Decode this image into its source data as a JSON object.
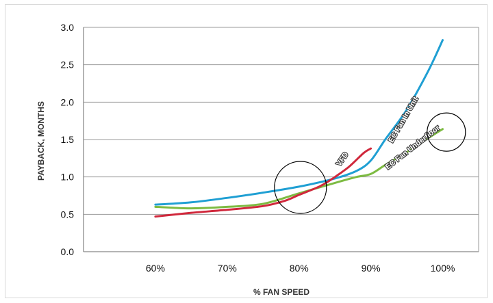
{
  "chart_data": {
    "type": "line",
    "title": "",
    "xlabel": "% FAN SPEED",
    "ylabel": "PAYBACK, MONTHS",
    "x": [
      60,
      70,
      80,
      90,
      100
    ],
    "x_tick_labels": [
      "60%",
      "70%",
      "80%",
      "90%",
      "100%"
    ],
    "y_tick_labels": [
      "0.0",
      "0.5",
      "1.0",
      "1.5",
      "2.0",
      "2.5",
      "3.0"
    ],
    "ylim": [
      0,
      3
    ],
    "grid": "horizontal",
    "colors": {
      "ec_fan_in_unit": "#1f9fd3",
      "ec_fan_underfloor": "#7dbb42",
      "vfd": "#d0283c",
      "grid": "#9a9a9a",
      "annotation_circle": "#000000"
    },
    "series": [
      {
        "name": "EC Fan In Unit",
        "color": "#1f9fd3",
        "points": [
          [
            60,
            0.63
          ],
          [
            65,
            0.66
          ],
          [
            70,
            0.72
          ],
          [
            75,
            0.79
          ],
          [
            80,
            0.87
          ],
          [
            85,
            0.98
          ],
          [
            88,
            1.08
          ],
          [
            90,
            1.22
          ],
          [
            92,
            1.5
          ],
          [
            95,
            1.9
          ],
          [
            98,
            2.42
          ],
          [
            100,
            2.83
          ]
        ]
      },
      {
        "name": "EC Fan Underfloor",
        "color": "#7dbb42",
        "points": [
          [
            60,
            0.6
          ],
          [
            65,
            0.58
          ],
          [
            70,
            0.6
          ],
          [
            75,
            0.64
          ],
          [
            80,
            0.78
          ],
          [
            85,
            0.92
          ],
          [
            88,
            1.0
          ],
          [
            90,
            1.04
          ],
          [
            92,
            1.16
          ],
          [
            95,
            1.33
          ],
          [
            98,
            1.52
          ],
          [
            100,
            1.64
          ]
        ]
      },
      {
        "name": "VFD",
        "color": "#d0283c",
        "points": [
          [
            60,
            0.47
          ],
          [
            65,
            0.52
          ],
          [
            70,
            0.56
          ],
          [
            75,
            0.61
          ],
          [
            78,
            0.68
          ],
          [
            80,
            0.76
          ],
          [
            83,
            0.88
          ],
          [
            85,
            1.0
          ],
          [
            87,
            1.14
          ],
          [
            89,
            1.32
          ],
          [
            90,
            1.38
          ]
        ]
      }
    ],
    "annotations": [
      {
        "type": "circle",
        "center": [
          80.2,
          0.86
        ],
        "note": "highlight"
      },
      {
        "type": "circle",
        "center": [
          100.5,
          1.6
        ],
        "note": "highlight"
      }
    ]
  }
}
